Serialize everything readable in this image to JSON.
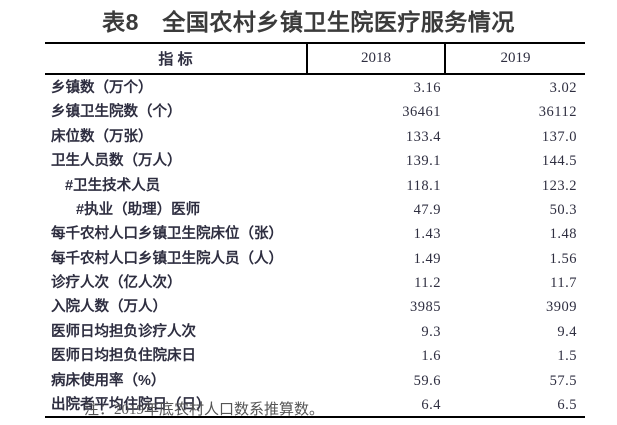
{
  "title": "表8　全国农村乡镇卫生院医疗服务情况",
  "note": "注：2019年底农村人口数系推算数。",
  "colors": {
    "title_text": "#3b3b3b",
    "body_text": "#2e2e40",
    "border": "#000000",
    "note_text": "#555555",
    "background": "#ffffff"
  },
  "table": {
    "columns": [
      "指 标",
      "2018",
      "2019"
    ],
    "rows": [
      {
        "label": "乡镇数（万个）",
        "indent": 0,
        "v2018": "3.16",
        "v2019": "3.02"
      },
      {
        "label": "乡镇卫生院数（个）",
        "indent": 0,
        "v2018": "36461",
        "v2019": "36112"
      },
      {
        "label": "床位数（万张）",
        "indent": 0,
        "v2018": "133.4",
        "v2019": "137.0"
      },
      {
        "label": "卫生人员数（万人）",
        "indent": 0,
        "v2018": "139.1",
        "v2019": "144.5"
      },
      {
        "label": "#卫生技术人员",
        "indent": 1,
        "v2018": "118.1",
        "v2019": "123.2"
      },
      {
        "label": "#执业（助理）医师",
        "indent": 2,
        "v2018": "47.9",
        "v2019": "50.3"
      },
      {
        "label": "每千农村人口乡镇卫生院床位（张）",
        "indent": 0,
        "v2018": "1.43",
        "v2019": "1.48"
      },
      {
        "label": "每千农村人口乡镇卫生院人员（人）",
        "indent": 0,
        "v2018": "1.49",
        "v2019": "1.56"
      },
      {
        "label": "诊疗人次（亿人次）",
        "indent": 0,
        "v2018": "11.2",
        "v2019": "11.7"
      },
      {
        "label": "入院人数（万人）",
        "indent": 0,
        "v2018": "3985",
        "v2019": "3909"
      },
      {
        "label": "医师日均担负诊疗人次",
        "indent": 0,
        "v2018": "9.3",
        "v2019": "9.4"
      },
      {
        "label": "医师日均担负住院床日",
        "indent": 0,
        "v2018": "1.6",
        "v2019": "1.5"
      },
      {
        "label": "病床使用率（%）",
        "indent": 0,
        "v2018": "59.6",
        "v2019": "57.5"
      },
      {
        "label": "出院者平均住院日（日）",
        "indent": 0,
        "v2018": "6.4",
        "v2019": "6.5"
      }
    ]
  }
}
